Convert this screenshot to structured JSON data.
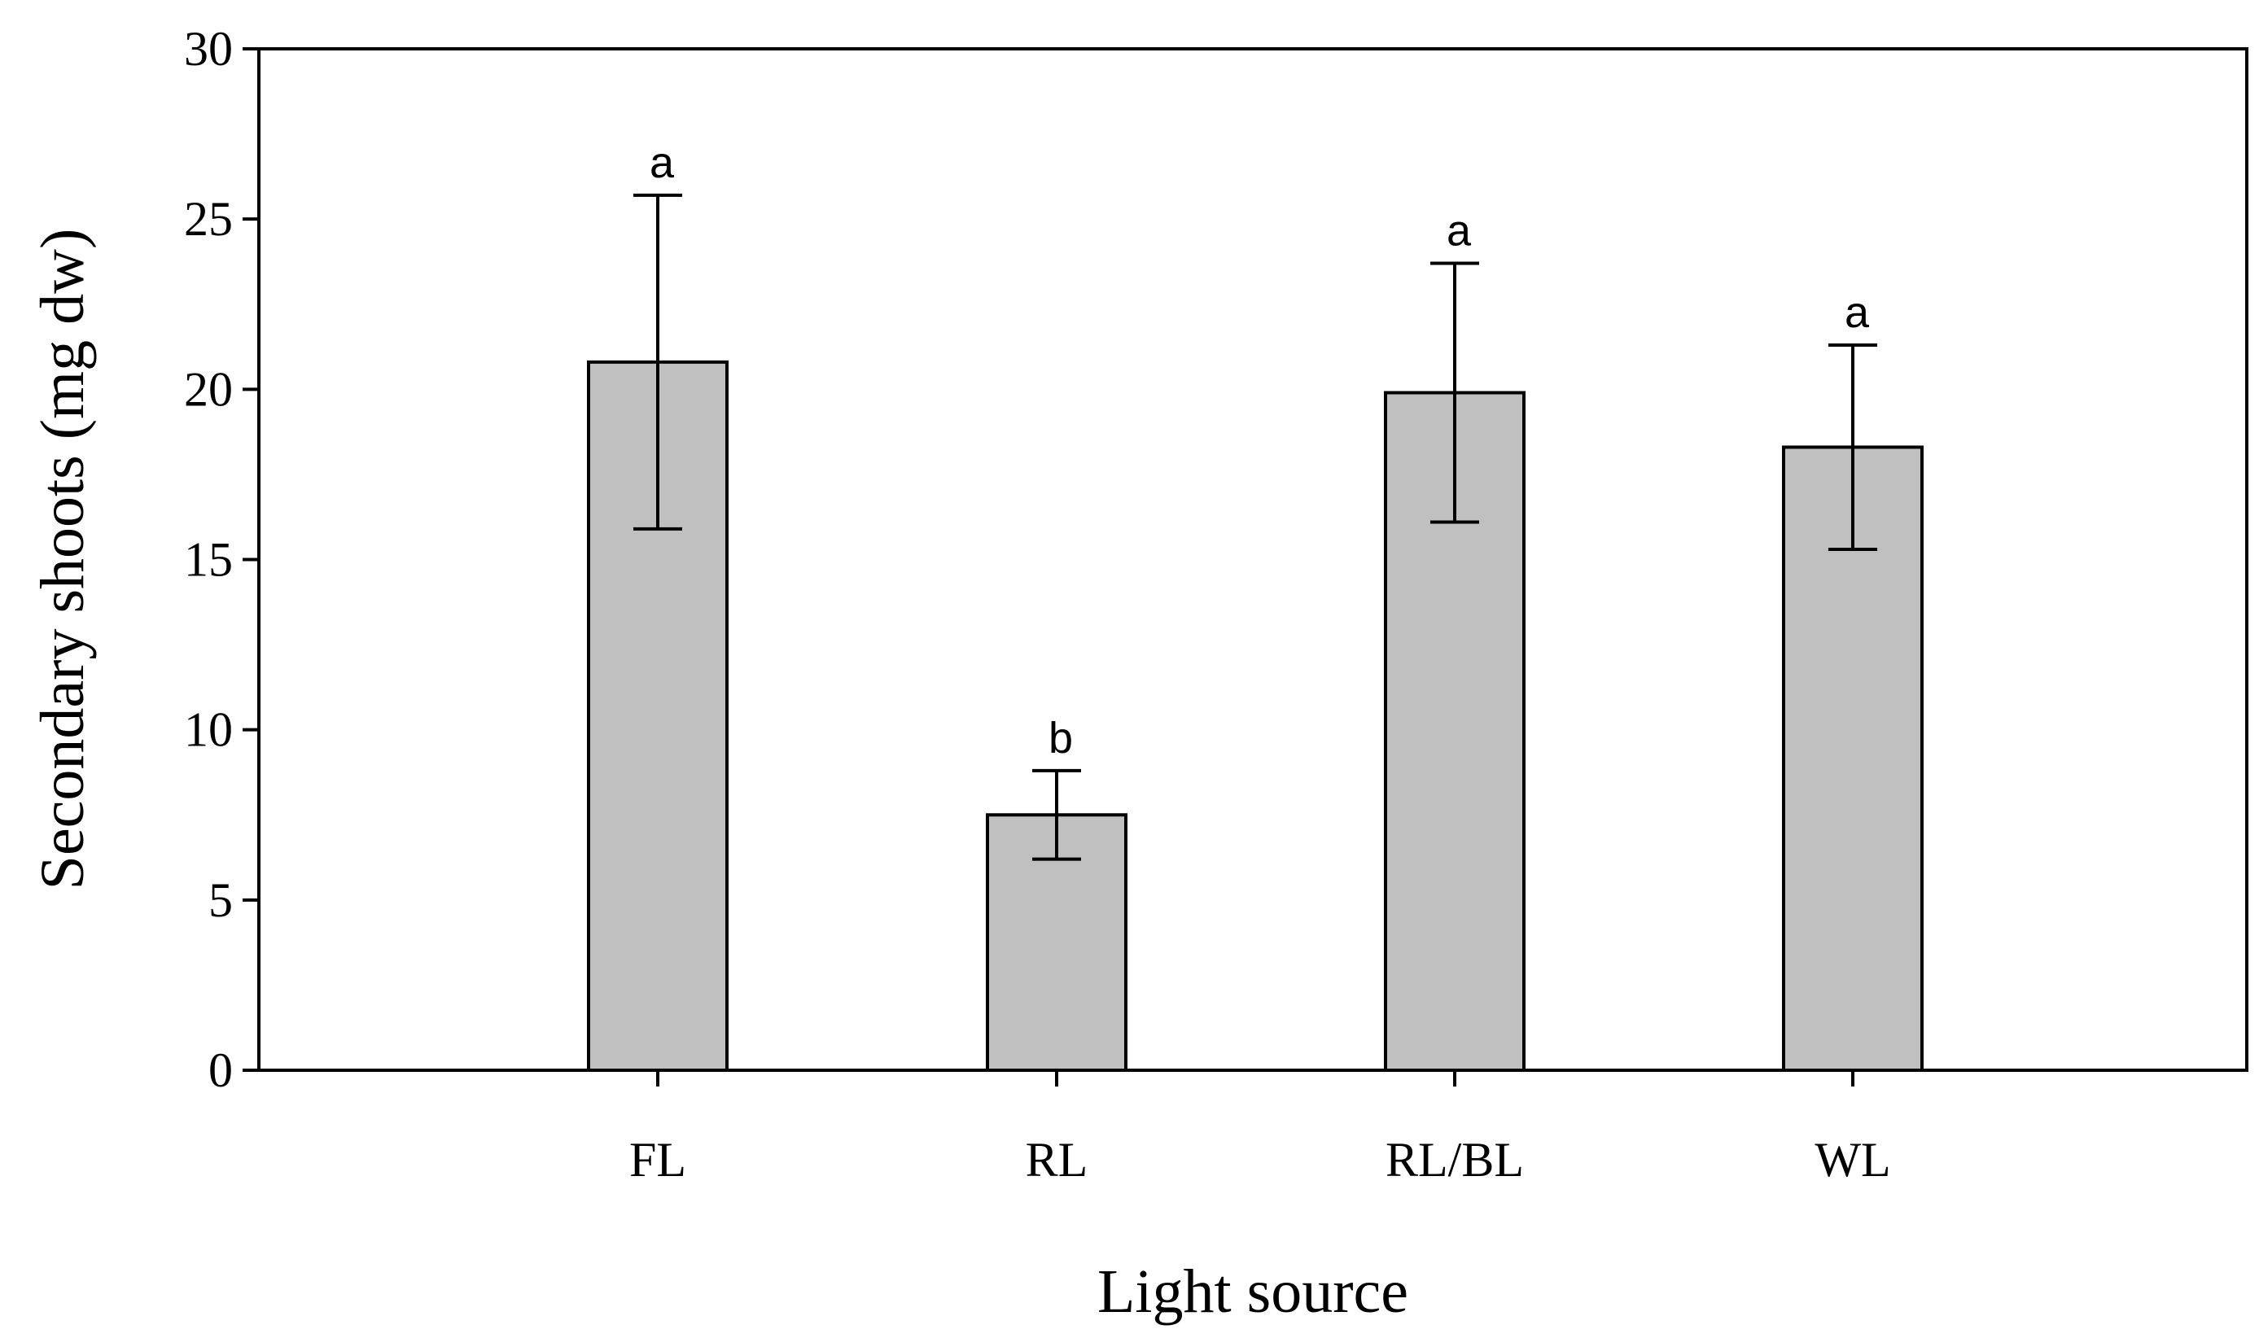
{
  "chart_data": {
    "type": "bar",
    "categories": [
      "FL",
      "RL",
      "RL/BL",
      "WL"
    ],
    "values": [
      20.8,
      7.5,
      19.9,
      18.3
    ],
    "errors": [
      4.9,
      1.3,
      3.8,
      3.0
    ],
    "significance": [
      "a",
      "b",
      "a",
      "a"
    ],
    "xlabel": "Light source",
    "ylabel": "Secondary shoots (mg dw)",
    "ylim": [
      0,
      30
    ],
    "yticks": [
      0,
      5,
      10,
      15,
      20,
      25,
      30
    ],
    "grid": false,
    "bar_color": "#c0c0c0",
    "edge_color": "#000000"
  }
}
